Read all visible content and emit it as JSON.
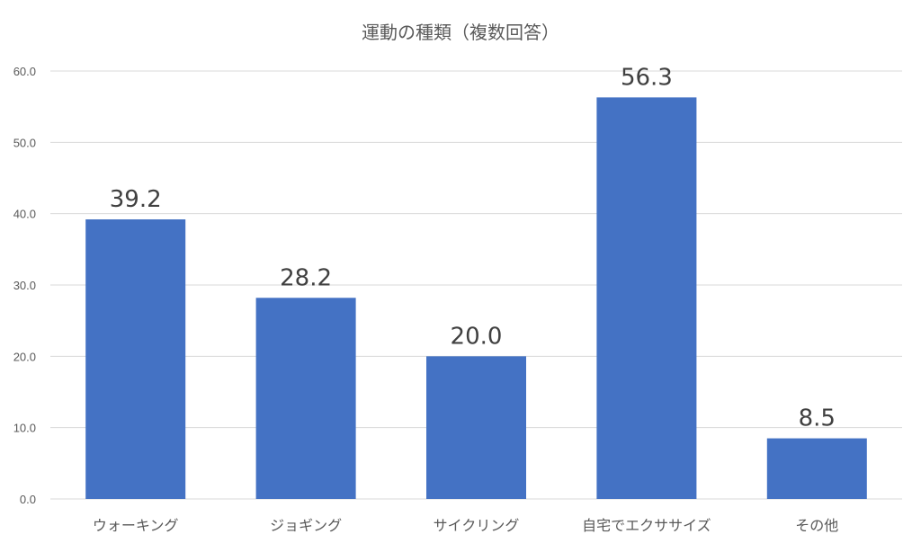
{
  "chart_data": {
    "type": "bar",
    "title": "運動の種類（複数回答）",
    "categories": [
      "ウォーキング",
      "ジョギング",
      "サイクリング",
      "自宅でエクササイズ",
      "その他"
    ],
    "values": [
      39.2,
      28.2,
      20.0,
      56.3,
      8.5
    ],
    "value_labels": [
      "39.2",
      "28.2",
      "20.0",
      "56.3",
      "8.5"
    ],
    "yticks": [
      "0.0",
      "10.0",
      "20.0",
      "30.0",
      "40.0",
      "50.0",
      "60.0"
    ],
    "ylim": [
      0,
      60
    ],
    "xlabel": "",
    "ylabel": "",
    "grid": true,
    "legend": "none",
    "bar_color": "#4472c4"
  }
}
